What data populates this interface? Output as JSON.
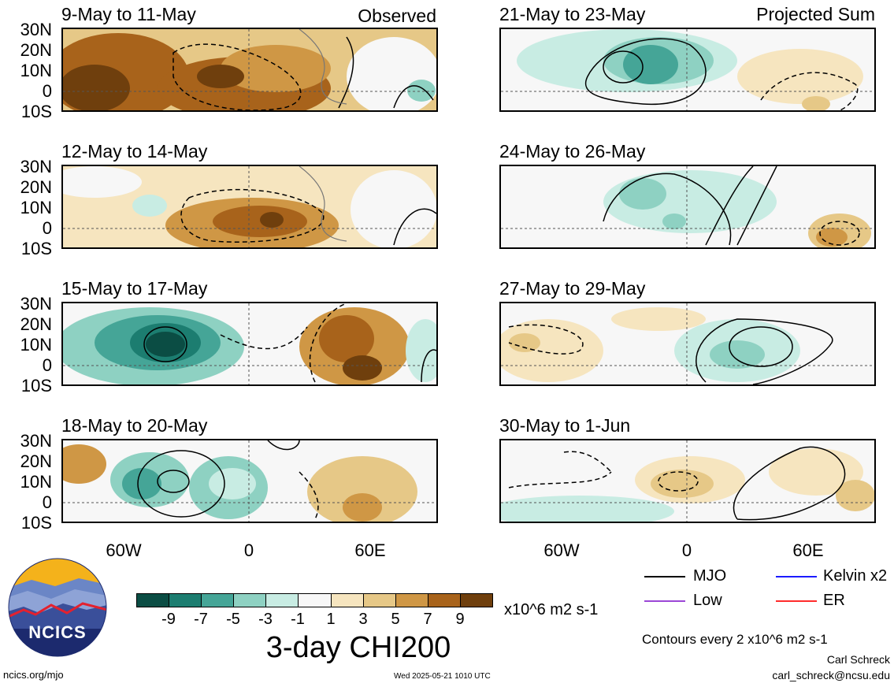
{
  "header": {
    "observed_label": "Observed",
    "projected_label": "Projected Sum"
  },
  "panels": {
    "left": [
      {
        "title": "9-May to 11-May"
      },
      {
        "title": "12-May to 14-May"
      },
      {
        "title": "15-May to 17-May"
      },
      {
        "title": "18-May to 20-May"
      }
    ],
    "right": [
      {
        "title": "21-May to 23-May"
      },
      {
        "title": "24-May to 26-May"
      },
      {
        "title": "27-May to 29-May"
      },
      {
        "title": "30-May to 1-Jun"
      }
    ]
  },
  "axes": {
    "lat_labels": [
      "30N",
      "20N",
      "10N",
      "0",
      "10S"
    ],
    "lon_labels": [
      "60W",
      "0",
      "60E"
    ]
  },
  "colorbar": {
    "colors": [
      "#0b4d44",
      "#1c7d70",
      "#45a597",
      "#8ed1c2",
      "#c8ece3",
      "#f7f7f7",
      "#f6e5bf",
      "#e6c887",
      "#cf9745",
      "#a8631b",
      "#6f3f0d"
    ],
    "ticks": [
      "-9",
      "-7",
      "-5",
      "-3",
      "-1",
      "1",
      "3",
      "5",
      "7",
      "9"
    ],
    "units": "x10^6 m2 s-1",
    "title": "3-day CHI200"
  },
  "legend": {
    "items": [
      {
        "label": "MJO",
        "color": "#000000"
      },
      {
        "label": "Kelvin x2",
        "color": "#1b1bff"
      },
      {
        "label": "Low",
        "color": "#9b47d6"
      },
      {
        "label": "ER",
        "color": "#ff2b2b"
      }
    ],
    "contour_note": "Contours every 2 x10^6 m2 s-1"
  },
  "footer": {
    "logo_text": "NCICS",
    "url": "ncics.org/mjo",
    "timestamp": "Wed 2025-05-21 1010 UTC",
    "author": "Carl Schreck",
    "email": "carl_schreck@ncsu.edu"
  }
}
